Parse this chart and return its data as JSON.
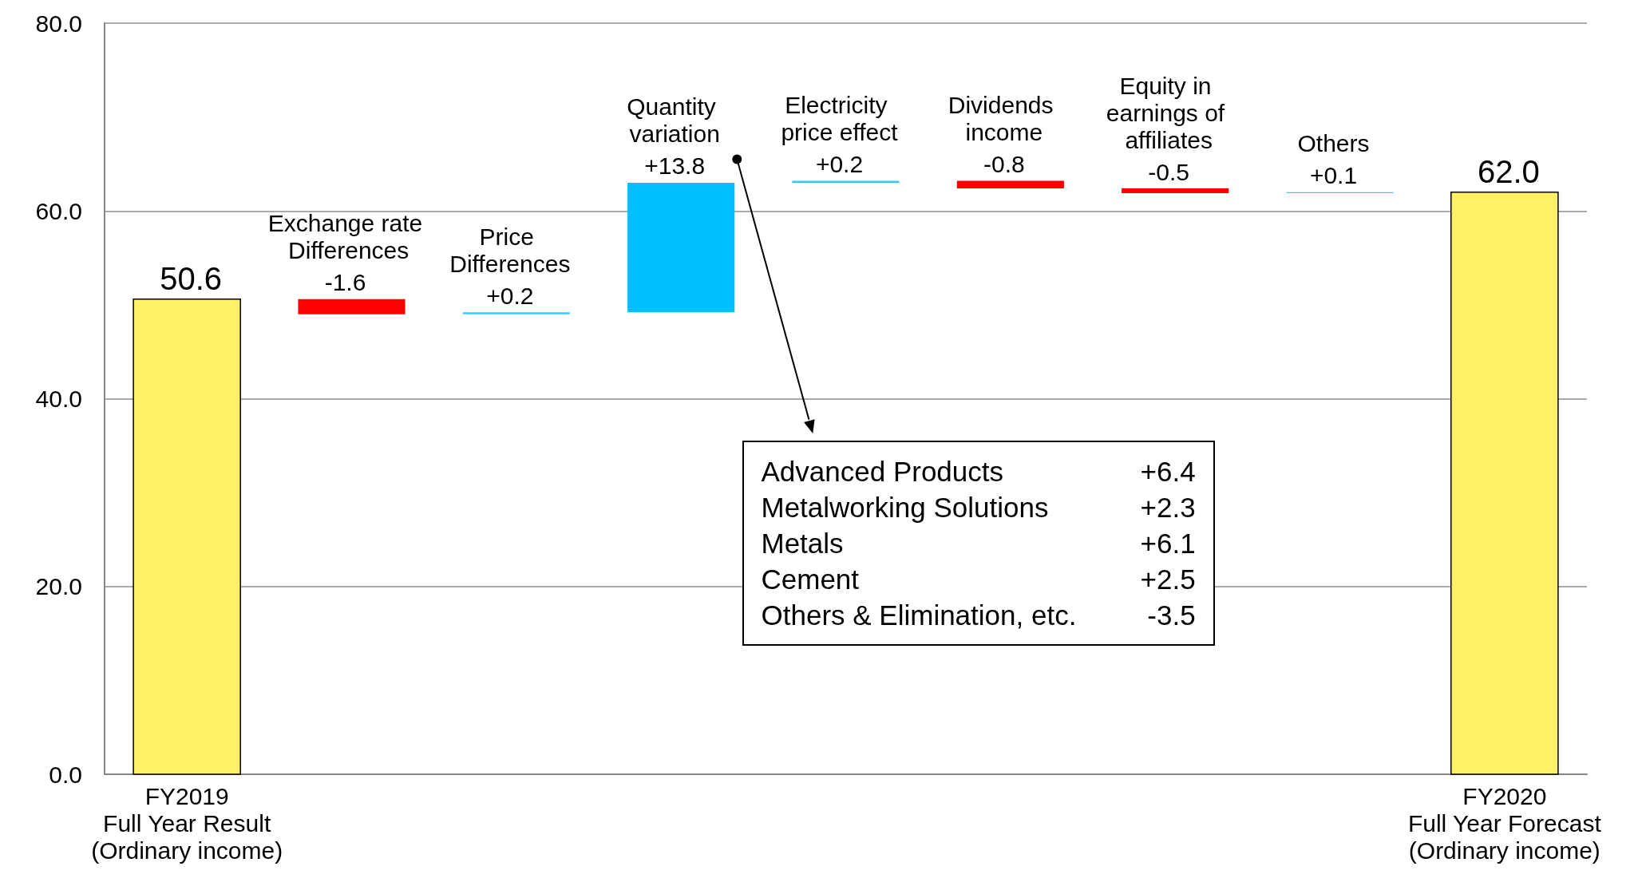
{
  "chart_data": {
    "type": "bar",
    "categories": [
      "FY2019\nFull Year Result\n(Ordinary income)",
      "Exchange rate Differences",
      "Price Differences",
      "Quantity variation",
      "Electricity price effect",
      "Dividends income",
      "Equity in earnings of affiliates",
      "Others",
      "FY2020\nFull Year Forecast\n(Ordinary income)"
    ],
    "values": [
      50.6,
      -1.6,
      0.2,
      13.8,
      0.2,
      -0.8,
      -0.5,
      0.1,
      62.0
    ],
    "base": [
      0,
      50.6,
      49.0,
      49.2,
      63.0,
      63.2,
      62.4,
      61.9,
      0
    ],
    "colors": [
      "#fff066",
      "#ff0000",
      "#33ccff",
      "#00bfff",
      "#33ccff",
      "#ff0000",
      "#ff0000",
      "#33ccff",
      "#fff066"
    ],
    "value_labels": [
      "50.6",
      "-1.6",
      "+0.2",
      "+13.8",
      "+0.2",
      "-0.8",
      "-0.5",
      "+0.1",
      "62.0"
    ],
    "ylim": [
      0,
      80
    ],
    "yticks": [
      {
        "value": 0,
        "label": "0.0"
      },
      {
        "value": 20,
        "label": "20.0"
      },
      {
        "value": 40,
        "label": "40.0"
      },
      {
        "value": 60,
        "label": "60.0"
      },
      {
        "value": 80,
        "label": "80.0"
      }
    ],
    "grid": "y",
    "annotations": [
      "Advanced Products +6.4",
      "Metalworking Solutions +2.3",
      "Metals +6.1",
      "Cement +2.5",
      "Others & Elimination, etc. -3.5"
    ]
  }
}
